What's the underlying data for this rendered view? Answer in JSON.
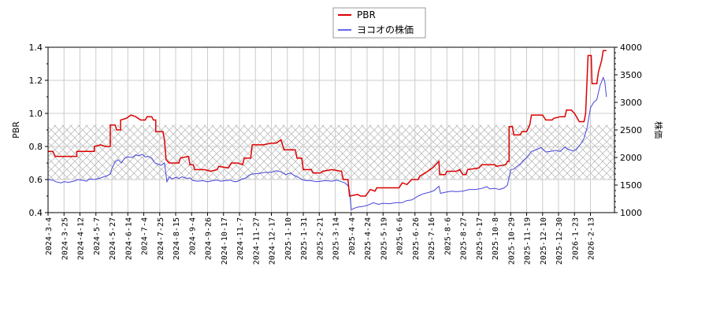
{
  "chart_data": {
    "type": "line",
    "title": "",
    "legend": {
      "position": "top-center",
      "entries": [
        {
          "label": "PBR",
          "color": "#dd0000"
        },
        {
          "label": "ヨコオの株価",
          "color": "#4444dd"
        }
      ]
    },
    "left_axis": {
      "label": "PBR",
      "ylim": [
        0.4,
        1.4
      ],
      "ticks": [
        "0.4",
        "0.6",
        "0.8",
        "1.0",
        "1.2",
        "1.4"
      ]
    },
    "right_axis": {
      "label": "株価",
      "ylim": [
        1000,
        4000
      ],
      "ticks": [
        "1000",
        "1500",
        "2000",
        "2500",
        "3000",
        "3500",
        "4000"
      ]
    },
    "grid": true,
    "shaded_band": {
      "pbr_range": [
        0.6,
        0.93
      ],
      "pattern": "cross-hatch"
    },
    "x_ticks": [
      "2024-3-4",
      "2024-3-25",
      "2024-4-12",
      "2024-5-7",
      "2024-5-27",
      "2024-6-14",
      "2024-7-4",
      "2024-7-25",
      "2024-8-15",
      "2024-9-4",
      "2024-9-26",
      "2024-10-17",
      "2024-11-7",
      "2024-11-27",
      "2024-12-17",
      "2025-1-10",
      "2025-1-31",
      "2025-2-21",
      "2025-3-14",
      "2025-4-4",
      "2025-4-24",
      "2025-5-19",
      "2025-6-6",
      "2025-6-26",
      "2025-7-16",
      "2025-8-6",
      "2025-8-27",
      "2025-9-17",
      "2025-10-8",
      "2025-10-29",
      "2025-11-19",
      "2025-12-10",
      "2025-12-30",
      "2026-1-23",
      "2026-2-13"
    ],
    "series": [
      {
        "name": "PBR",
        "axis": "left",
        "color": "#dd0000",
        "points": [
          [
            0,
            0.77
          ],
          [
            0.3,
            0.77
          ],
          [
            0.45,
            0.74
          ],
          [
            1,
            0.74
          ],
          [
            1.8,
            0.74
          ],
          [
            1.8,
            0.77
          ],
          [
            2.5,
            0.77
          ],
          [
            2.9,
            0.77
          ],
          [
            2.9,
            0.8
          ],
          [
            3.3,
            0.81
          ],
          [
            3.6,
            0.8
          ],
          [
            3.9,
            0.8
          ],
          [
            3.9,
            0.93
          ],
          [
            4.2,
            0.93
          ],
          [
            4.3,
            0.9
          ],
          [
            4.55,
            0.9
          ],
          [
            4.55,
            0.96
          ],
          [
            4.9,
            0.97
          ],
          [
            5.2,
            0.99
          ],
          [
            5.5,
            0.98
          ],
          [
            5.8,
            0.96
          ],
          [
            6.1,
            0.96
          ],
          [
            6.2,
            0.98
          ],
          [
            6.5,
            0.98
          ],
          [
            6.6,
            0.96
          ],
          [
            6.75,
            0.96
          ],
          [
            6.75,
            0.89
          ],
          [
            7.2,
            0.89
          ],
          [
            7.3,
            0.84
          ],
          [
            7.4,
            0.72
          ],
          [
            7.6,
            0.7
          ],
          [
            8.2,
            0.7
          ],
          [
            8.3,
            0.73
          ],
          [
            8.8,
            0.74
          ],
          [
            8.9,
            0.69
          ],
          [
            9.1,
            0.69
          ],
          [
            9.2,
            0.66
          ],
          [
            9.8,
            0.66
          ],
          [
            10.2,
            0.65
          ],
          [
            10.6,
            0.66
          ],
          [
            10.7,
            0.68
          ],
          [
            11.3,
            0.67
          ],
          [
            11.5,
            0.7
          ],
          [
            11.9,
            0.7
          ],
          [
            12.2,
            0.69
          ],
          [
            12.3,
            0.73
          ],
          [
            12.7,
            0.73
          ],
          [
            12.8,
            0.81
          ],
          [
            13.5,
            0.81
          ],
          [
            14.0,
            0.82
          ],
          [
            14.3,
            0.82
          ],
          [
            14.6,
            0.84
          ],
          [
            14.8,
            0.78
          ],
          [
            15.5,
            0.78
          ],
          [
            15.6,
            0.73
          ],
          [
            15.9,
            0.73
          ],
          [
            16.0,
            0.66
          ],
          [
            16.5,
            0.66
          ],
          [
            16.6,
            0.64
          ],
          [
            17.1,
            0.64
          ],
          [
            17.2,
            0.65
          ],
          [
            17.8,
            0.66
          ],
          [
            18.4,
            0.65
          ],
          [
            18.5,
            0.6
          ],
          [
            18.8,
            0.6
          ],
          [
            18.9,
            0.5
          ],
          [
            19.4,
            0.51
          ],
          [
            19.6,
            0.5
          ],
          [
            19.9,
            0.5
          ],
          [
            20.2,
            0.54
          ],
          [
            20.5,
            0.53
          ],
          [
            20.6,
            0.55
          ],
          [
            22.0,
            0.55
          ],
          [
            22.2,
            0.58
          ],
          [
            22.5,
            0.57
          ],
          [
            22.8,
            0.6
          ],
          [
            23.2,
            0.6
          ],
          [
            23.3,
            0.62
          ],
          [
            23.8,
            0.65
          ],
          [
            24.1,
            0.67
          ],
          [
            24.3,
            0.69
          ],
          [
            24.5,
            0.71
          ],
          [
            24.55,
            0.63
          ],
          [
            24.9,
            0.63
          ],
          [
            25.0,
            0.65
          ],
          [
            25.6,
            0.65
          ],
          [
            25.8,
            0.66
          ],
          [
            26.0,
            0.63
          ],
          [
            26.2,
            0.63
          ],
          [
            26.3,
            0.66
          ],
          [
            27.0,
            0.67
          ],
          [
            27.2,
            0.69
          ],
          [
            28.0,
            0.69
          ],
          [
            28.1,
            0.68
          ],
          [
            28.7,
            0.69
          ],
          [
            28.8,
            0.71
          ],
          [
            28.9,
            0.71
          ],
          [
            28.9,
            0.92
          ],
          [
            29.1,
            0.92
          ],
          [
            29.2,
            0.87
          ],
          [
            29.6,
            0.87
          ],
          [
            29.7,
            0.89
          ],
          [
            30.0,
            0.89
          ],
          [
            30.2,
            0.93
          ],
          [
            30.3,
            0.99
          ],
          [
            31.0,
            0.99
          ],
          [
            31.2,
            0.96
          ],
          [
            31.6,
            0.96
          ],
          [
            31.7,
            0.97
          ],
          [
            32.1,
            0.98
          ],
          [
            32.4,
            0.98
          ],
          [
            32.5,
            1.02
          ],
          [
            32.8,
            1.02
          ],
          [
            33.0,
            1.0
          ],
          [
            33.3,
            0.95
          ],
          [
            33.6,
            0.95
          ],
          [
            33.7,
            1.0
          ],
          [
            33.85,
            1.35
          ],
          [
            34.05,
            1.35
          ],
          [
            34.1,
            1.18
          ],
          [
            34.4,
            1.18
          ],
          [
            34.5,
            1.25
          ],
          [
            34.7,
            1.32
          ],
          [
            34.8,
            1.38
          ],
          [
            35.0,
            1.38
          ]
        ]
      },
      {
        "name": "ヨコオの株価",
        "axis": "right",
        "color": "#4444dd",
        "points": [
          [
            0,
            1600
          ],
          [
            0.3,
            1590
          ],
          [
            0.5,
            1560
          ],
          [
            0.8,
            1540
          ],
          [
            1.0,
            1560
          ],
          [
            1.3,
            1550
          ],
          [
            1.6,
            1570
          ],
          [
            1.9,
            1600
          ],
          [
            2.1,
            1590
          ],
          [
            2.4,
            1570
          ],
          [
            2.6,
            1610
          ],
          [
            2.9,
            1600
          ],
          [
            3.2,
            1620
          ],
          [
            3.5,
            1650
          ],
          [
            3.7,
            1670
          ],
          [
            3.9,
            1700
          ],
          [
            4.0,
            1800
          ],
          [
            4.2,
            1920
          ],
          [
            4.4,
            1960
          ],
          [
            4.6,
            1900
          ],
          [
            4.8,
            1990
          ],
          [
            5.0,
            2010
          ],
          [
            5.3,
            2000
          ],
          [
            5.5,
            2050
          ],
          [
            5.7,
            2030
          ],
          [
            5.9,
            2060
          ],
          [
            6.1,
            2010
          ],
          [
            6.3,
            2020
          ],
          [
            6.5,
            1990
          ],
          [
            6.7,
            1900
          ],
          [
            6.9,
            1880
          ],
          [
            7.1,
            1860
          ],
          [
            7.3,
            1900
          ],
          [
            7.45,
            1560
          ],
          [
            7.6,
            1650
          ],
          [
            7.8,
            1610
          ],
          [
            8.0,
            1640
          ],
          [
            8.2,
            1620
          ],
          [
            8.4,
            1650
          ],
          [
            8.7,
            1620
          ],
          [
            8.9,
            1630
          ],
          [
            9.1,
            1580
          ],
          [
            9.4,
            1570
          ],
          [
            9.7,
            1580
          ],
          [
            10.0,
            1560
          ],
          [
            10.3,
            1580
          ],
          [
            10.6,
            1590
          ],
          [
            10.8,
            1570
          ],
          [
            11.1,
            1580
          ],
          [
            11.4,
            1590
          ],
          [
            11.7,
            1560
          ],
          [
            11.9,
            1570
          ],
          [
            12.1,
            1600
          ],
          [
            12.4,
            1630
          ],
          [
            12.6,
            1680
          ],
          [
            12.8,
            1700
          ],
          [
            13.2,
            1710
          ],
          [
            13.6,
            1730
          ],
          [
            14.0,
            1730
          ],
          [
            14.3,
            1760
          ],
          [
            14.6,
            1740
          ],
          [
            14.9,
            1690
          ],
          [
            15.2,
            1720
          ],
          [
            15.4,
            1680
          ],
          [
            15.7,
            1640
          ],
          [
            15.9,
            1600
          ],
          [
            16.2,
            1580
          ],
          [
            16.5,
            1580
          ],
          [
            16.8,
            1560
          ],
          [
            17.1,
            1570
          ],
          [
            17.4,
            1580
          ],
          [
            17.8,
            1570
          ],
          [
            18.1,
            1590
          ],
          [
            18.4,
            1560
          ],
          [
            18.6,
            1540
          ],
          [
            18.8,
            1490
          ],
          [
            18.9,
            1400
          ],
          [
            19.0,
            1050
          ],
          [
            19.2,
            1080
          ],
          [
            19.4,
            1100
          ],
          [
            19.7,
            1110
          ],
          [
            20.0,
            1130
          ],
          [
            20.4,
            1180
          ],
          [
            20.7,
            1150
          ],
          [
            21.0,
            1170
          ],
          [
            21.4,
            1160
          ],
          [
            21.8,
            1180
          ],
          [
            22.2,
            1180
          ],
          [
            22.5,
            1220
          ],
          [
            22.8,
            1230
          ],
          [
            23.2,
            1300
          ],
          [
            23.5,
            1340
          ],
          [
            23.9,
            1370
          ],
          [
            24.2,
            1400
          ],
          [
            24.5,
            1480
          ],
          [
            24.6,
            1350
          ],
          [
            24.9,
            1370
          ],
          [
            25.3,
            1390
          ],
          [
            25.6,
            1380
          ],
          [
            26.0,
            1390
          ],
          [
            26.4,
            1420
          ],
          [
            26.8,
            1420
          ],
          [
            27.2,
            1440
          ],
          [
            27.5,
            1470
          ],
          [
            27.7,
            1430
          ],
          [
            28.0,
            1440
          ],
          [
            28.3,
            1420
          ],
          [
            28.6,
            1450
          ],
          [
            28.8,
            1500
          ],
          [
            29.0,
            1780
          ],
          [
            29.2,
            1790
          ],
          [
            29.4,
            1840
          ],
          [
            29.6,
            1880
          ],
          [
            29.8,
            1950
          ],
          [
            30.0,
            2000
          ],
          [
            30.3,
            2110
          ],
          [
            30.6,
            2140
          ],
          [
            30.9,
            2180
          ],
          [
            31.2,
            2100
          ],
          [
            31.5,
            2110
          ],
          [
            31.8,
            2130
          ],
          [
            32.1,
            2110
          ],
          [
            32.4,
            2190
          ],
          [
            32.6,
            2150
          ],
          [
            32.9,
            2120
          ],
          [
            33.1,
            2140
          ],
          [
            33.4,
            2250
          ],
          [
            33.6,
            2350
          ],
          [
            33.8,
            2550
          ],
          [
            34.0,
            2900
          ],
          [
            34.2,
            3000
          ],
          [
            34.4,
            3050
          ],
          [
            34.6,
            3300
          ],
          [
            34.8,
            3450
          ],
          [
            34.9,
            3380
          ],
          [
            35.0,
            3100
          ]
        ]
      }
    ]
  },
  "legend": {
    "items": [
      {
        "label": "PBR"
      },
      {
        "label": "ヨコオの株価"
      }
    ]
  },
  "axes": {
    "left_title": "PBR",
    "right_title": "株価"
  }
}
